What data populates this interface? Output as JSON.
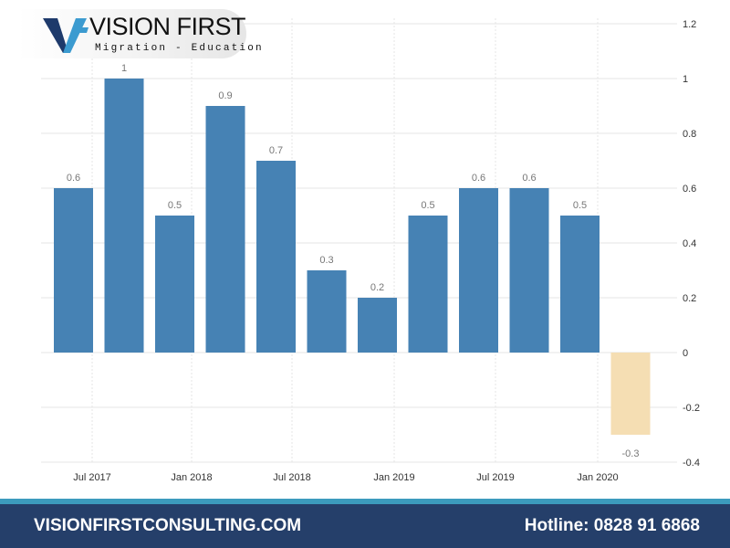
{
  "brand": {
    "name": "VISION FIRST",
    "tagline": "Migration - Education",
    "monogram": "VF",
    "colors": {
      "dark": "#1e3a6b",
      "light": "#3c9bd0"
    }
  },
  "footer": {
    "website": "VISIONFIRSTCONSULTING.COM",
    "hotline": "Hotline: 0828 91 6868"
  },
  "chart_data": {
    "type": "bar",
    "title": "",
    "xlabel": "",
    "ylabel": "",
    "ylim": [
      -0.4,
      1.2
    ],
    "yticks": [
      1.2,
      1,
      0.8,
      0.6,
      0.4,
      0.2,
      0,
      -0.2,
      -0.4
    ],
    "ytick_labels": [
      "1.2",
      "1",
      "0.8",
      "0.6",
      "0.4",
      "0.2",
      "0",
      "-0.2",
      "-0.4"
    ],
    "xtick_labels": [
      "Jul 2017",
      "Jan 2018",
      "Jul 2018",
      "Jan 2019",
      "Jul 2019",
      "Jan 2020"
    ],
    "values": [
      0.6,
      1,
      0.5,
      0.9,
      0.7,
      0.3,
      0.2,
      0.5,
      0.6,
      0.6,
      0.5,
      -0.3
    ],
    "data_labels": [
      "0.6",
      "1",
      "0.5",
      "0.9",
      "0.7",
      "0.3",
      "0.2",
      "0.5",
      "0.6",
      "0.6",
      "0.5",
      "-0.3"
    ],
    "grid": true,
    "colors": {
      "positive": "#4682b4",
      "negative": "#f5deb3"
    }
  }
}
